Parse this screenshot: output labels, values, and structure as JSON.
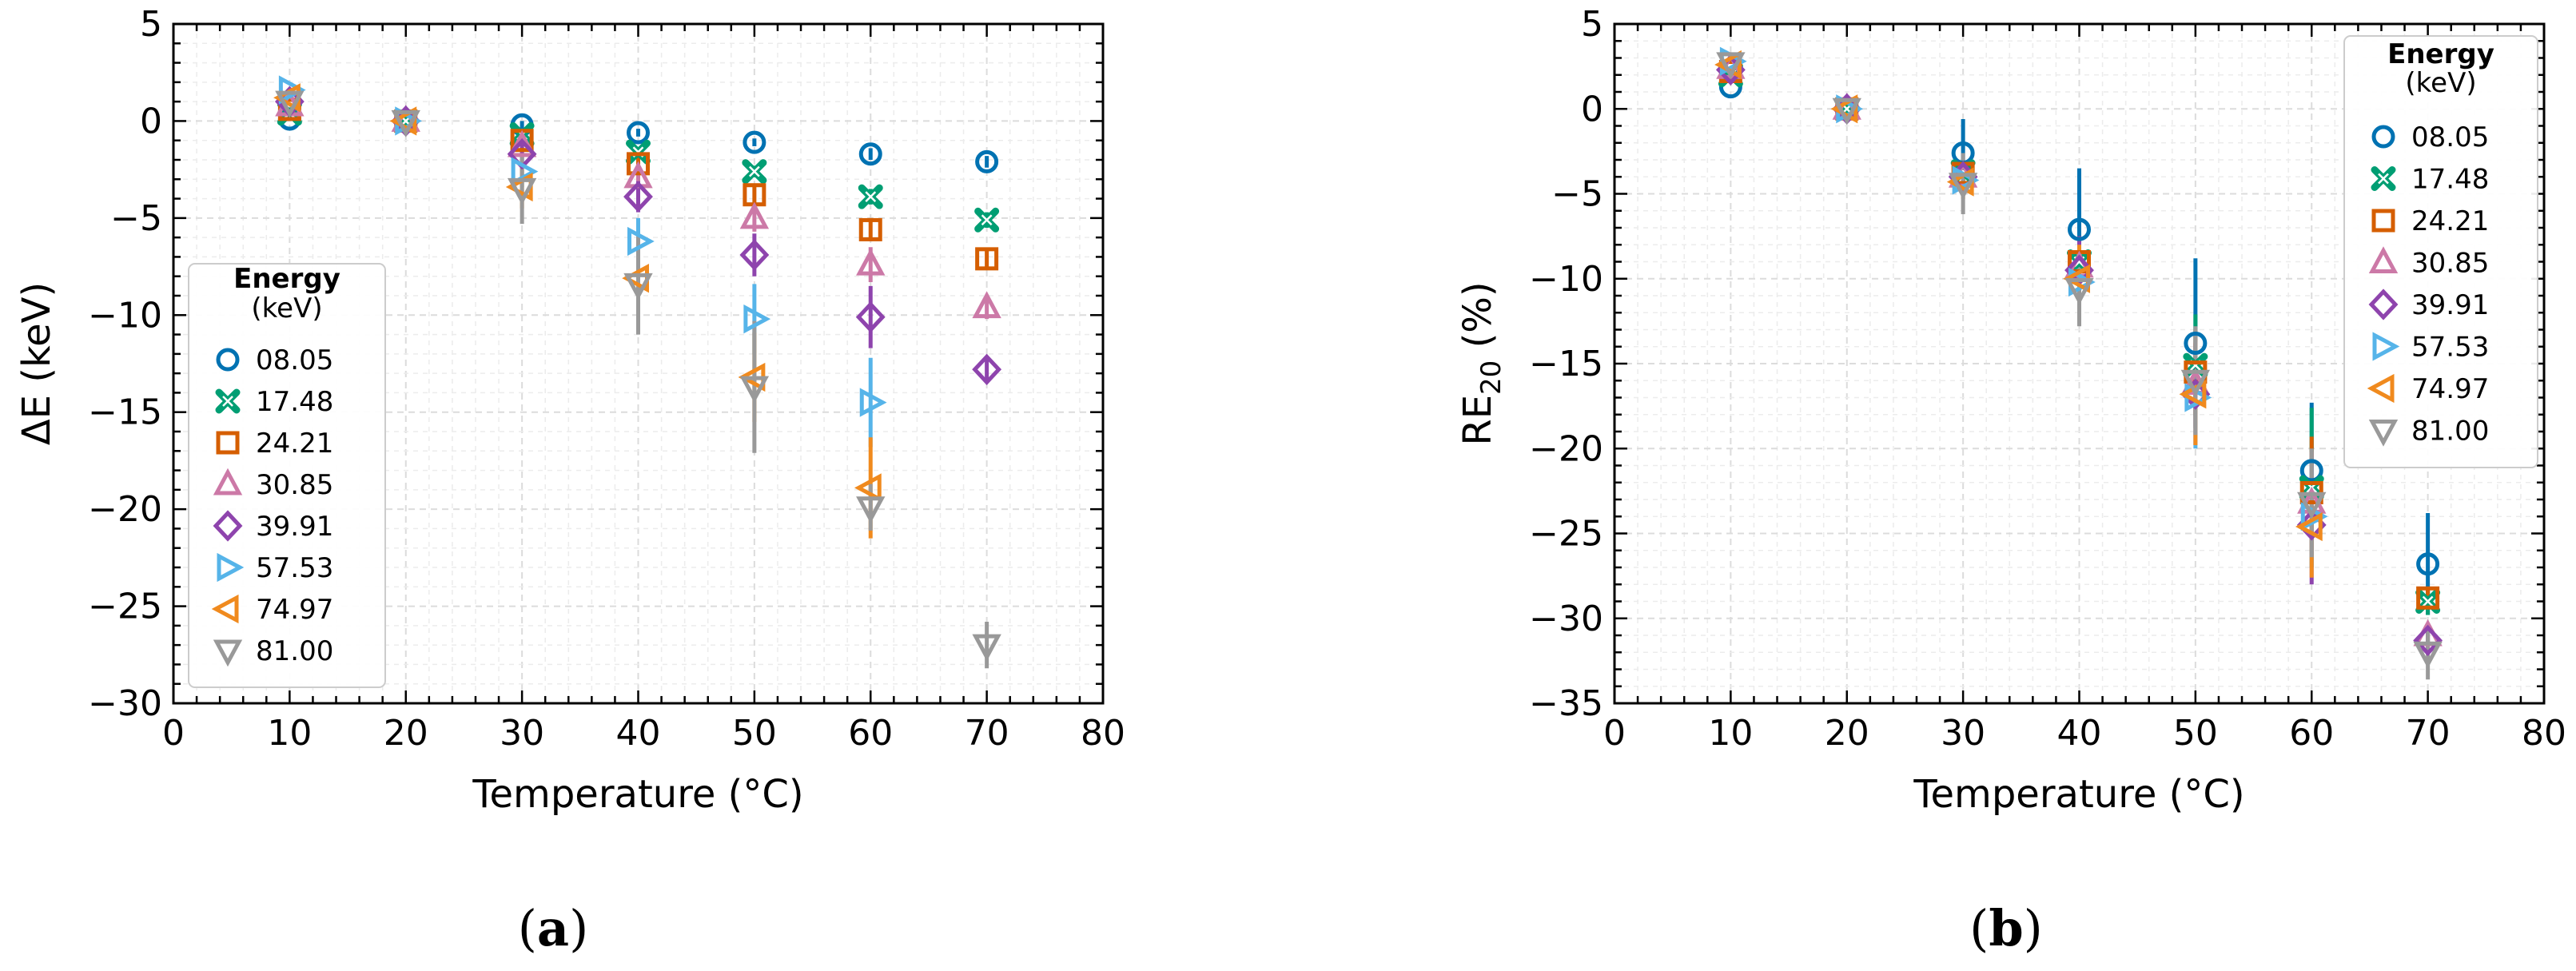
{
  "chart_data": [
    {
      "type": "scatter",
      "panel_label": {
        "open": "(",
        "letter": "a",
        "close": ")"
      },
      "xlabel": "Temperature (°C)",
      "ylabel": "ΔE (keV)",
      "xlim": [
        0,
        80
      ],
      "ylim": [
        -30,
        5
      ],
      "xticks": [
        0,
        10,
        20,
        30,
        40,
        50,
        60,
        70,
        80
      ],
      "yticks": [
        5,
        0,
        -5,
        -10,
        -15,
        -20,
        -25,
        -30
      ],
      "ytick_labels": [
        "5",
        "0",
        "−5",
        "−10",
        "−15",
        "−20",
        "−25",
        "−30"
      ],
      "grid": true,
      "legend": {
        "title": "Energy",
        "subtitle": "(keV)",
        "placement": "middle-left"
      },
      "series": [
        {
          "name": "08.05",
          "marker": "circle",
          "color": "#0072b2",
          "x": [
            10,
            20,
            30,
            40,
            50,
            60,
            70
          ],
          "y": [
            0.1,
            0,
            -0.2,
            -0.6,
            -1.1,
            -1.7,
            -2.1
          ],
          "err": [
            0,
            0,
            0.2,
            0.2,
            0.2,
            0.3,
            0.3
          ]
        },
        {
          "name": "17.48",
          "marker": "x-thick",
          "color": "#009e73",
          "x": [
            10,
            20,
            30,
            40,
            50,
            60,
            70
          ],
          "y": [
            0.4,
            0,
            -0.7,
            -1.6,
            -2.6,
            -3.9,
            -5.1
          ],
          "err": [
            0,
            0,
            0.2,
            0.2,
            0.3,
            0.4,
            0.4
          ]
        },
        {
          "name": "24.21",
          "marker": "square",
          "color": "#d55e00",
          "x": [
            10,
            20,
            30,
            40,
            50,
            60,
            70
          ],
          "y": [
            0.6,
            0,
            -1.0,
            -2.2,
            -3.8,
            -5.6,
            -7.1
          ],
          "err": [
            0,
            0,
            0.3,
            0.4,
            0.5,
            0.6,
            0.5
          ]
        },
        {
          "name": "30.85",
          "marker": "triangle-up",
          "color": "#cc79a7",
          "x": [
            10,
            20,
            30,
            40,
            50,
            60,
            70
          ],
          "y": [
            0.8,
            0,
            -1.3,
            -2.9,
            -5.0,
            -7.4,
            -9.6
          ],
          "err": [
            0,
            0,
            0.4,
            0.5,
            0.7,
            0.9,
            0.6
          ]
        },
        {
          "name": "39.91",
          "marker": "diamond",
          "color": "#8e44ad",
          "x": [
            10,
            20,
            30,
            40,
            50,
            60,
            70
          ],
          "y": [
            1.0,
            0,
            -1.7,
            -3.9,
            -6.9,
            -10.1,
            -12.8
          ],
          "err": [
            0,
            0,
            0.5,
            0.8,
            1.1,
            1.6,
            0.6
          ]
        },
        {
          "name": "57.53",
          "marker": "triangle-right",
          "color": "#56b4e9",
          "x": [
            10,
            20,
            30,
            40,
            50,
            60,
            70
          ],
          "y": [
            1.6,
            0,
            -2.6,
            -6.2,
            -10.2,
            -14.5,
            null
          ],
          "err": [
            0,
            0,
            0.8,
            1.2,
            1.8,
            2.3,
            0
          ]
        },
        {
          "name": "74.97",
          "marker": "triangle-left",
          "color": "#f08a1e",
          "x": [
            10,
            20,
            30,
            40,
            50,
            60,
            70
          ],
          "y": [
            1.2,
            0,
            -3.4,
            -8.1,
            -13.2,
            -18.9,
            null
          ],
          "err": [
            0,
            0,
            1.1,
            1.7,
            2.3,
            2.6,
            0
          ]
        },
        {
          "name": "81.00",
          "marker": "triangle-down",
          "color": "#999999",
          "x": [
            10,
            20,
            30,
            40,
            50,
            60,
            70
          ],
          "y": [
            1.0,
            0,
            -3.5,
            -8.4,
            -13.7,
            -19.9,
            -27.0
          ],
          "err": [
            0,
            0,
            1.8,
            2.6,
            3.4,
            1.2,
            1.2
          ]
        }
      ]
    },
    {
      "type": "scatter",
      "panel_label": {
        "open": "(",
        "letter": "b",
        "close": ")"
      },
      "xlabel": "Temperature (°C)",
      "ylabel_main": "RE",
      "ylabel_sub": "20",
      "ylabel_tail": " (%)",
      "xlim": [
        0,
        80
      ],
      "ylim": [
        -35,
        5
      ],
      "xticks": [
        0,
        10,
        20,
        30,
        40,
        50,
        60,
        70,
        80
      ],
      "yticks": [
        5,
        0,
        -5,
        -10,
        -15,
        -20,
        -25,
        -30,
        -35
      ],
      "ytick_labels": [
        "5",
        "0",
        "−5",
        "−10",
        "−15",
        "−20",
        "−25",
        "−30",
        "−35"
      ],
      "grid": true,
      "legend": {
        "title": "Energy",
        "subtitle": "(keV)",
        "placement": "upper-right"
      },
      "series": [
        {
          "name": "08.05",
          "marker": "circle",
          "color": "#0072b2",
          "x": [
            10,
            20,
            30,
            40,
            50,
            60,
            70
          ],
          "y": [
            1.3,
            0,
            -2.6,
            -7.1,
            -13.8,
            -21.3,
            -26.8
          ],
          "err": [
            0,
            0,
            2.0,
            3.6,
            5.0,
            4.0,
            3.0
          ]
        },
        {
          "name": "17.48",
          "marker": "x-thick",
          "color": "#009e73",
          "x": [
            10,
            20,
            30,
            40,
            50,
            60,
            70
          ],
          "y": [
            2.0,
            0,
            -3.7,
            -9.0,
            -15.1,
            -22.3,
            -29.0
          ],
          "err": [
            0,
            0,
            0.6,
            1.5,
            3.0,
            4.7,
            0.8
          ]
        },
        {
          "name": "24.21",
          "marker": "square",
          "color": "#d55e00",
          "x": [
            10,
            20,
            30,
            40,
            50,
            60,
            70
          ],
          "y": [
            2.2,
            0,
            -3.8,
            -9.0,
            -15.5,
            -22.6,
            -28.8
          ],
          "err": [
            0,
            0,
            0.6,
            1.5,
            2.5,
            3.3,
            0.6
          ]
        },
        {
          "name": "30.85",
          "marker": "triangle-up",
          "color": "#cc79a7",
          "x": [
            10,
            20,
            30,
            40,
            50,
            60,
            70
          ],
          "y": [
            2.4,
            0,
            -4.0,
            -9.3,
            -16.2,
            -23.2,
            -31.0
          ],
          "err": [
            0,
            0,
            0.6,
            1.5,
            2.5,
            3.0,
            0.6
          ]
        },
        {
          "name": "39.91",
          "marker": "diamond",
          "color": "#8e44ad",
          "x": [
            10,
            20,
            30,
            40,
            50,
            60,
            70
          ],
          "y": [
            2.3,
            0,
            -4.0,
            -9.5,
            -16.8,
            -24.5,
            -31.3
          ],
          "err": [
            0,
            0,
            0.6,
            2.0,
            3.0,
            3.5,
            0.8
          ]
        },
        {
          "name": "57.53",
          "marker": "triangle-right",
          "color": "#56b4e9",
          "x": [
            10,
            20,
            30,
            40,
            50,
            60,
            70
          ],
          "y": [
            2.8,
            0,
            -4.2,
            -10.2,
            -17.0,
            -24.0,
            null
          ],
          "err": [
            0,
            0,
            0.8,
            2.0,
            3.0,
            3.0,
            0
          ]
        },
        {
          "name": "74.97",
          "marker": "triangle-left",
          "color": "#f08a1e",
          "x": [
            10,
            20,
            30,
            40,
            50,
            60,
            70
          ],
          "y": [
            2.6,
            0,
            -4.3,
            -10.0,
            -16.8,
            -24.6,
            null
          ],
          "err": [
            0,
            0,
            1.0,
            2.0,
            3.0,
            3.0,
            0
          ]
        },
        {
          "name": "81.00",
          "marker": "triangle-down",
          "color": "#999999",
          "x": [
            10,
            20,
            30,
            40,
            50,
            60,
            70
          ],
          "y": [
            2.7,
            0,
            -4.4,
            -10.6,
            -16.0,
            -23.2,
            -32.0
          ],
          "err": [
            0,
            0,
            1.8,
            2.2,
            3.2,
            3.2,
            1.6
          ]
        }
      ]
    }
  ]
}
